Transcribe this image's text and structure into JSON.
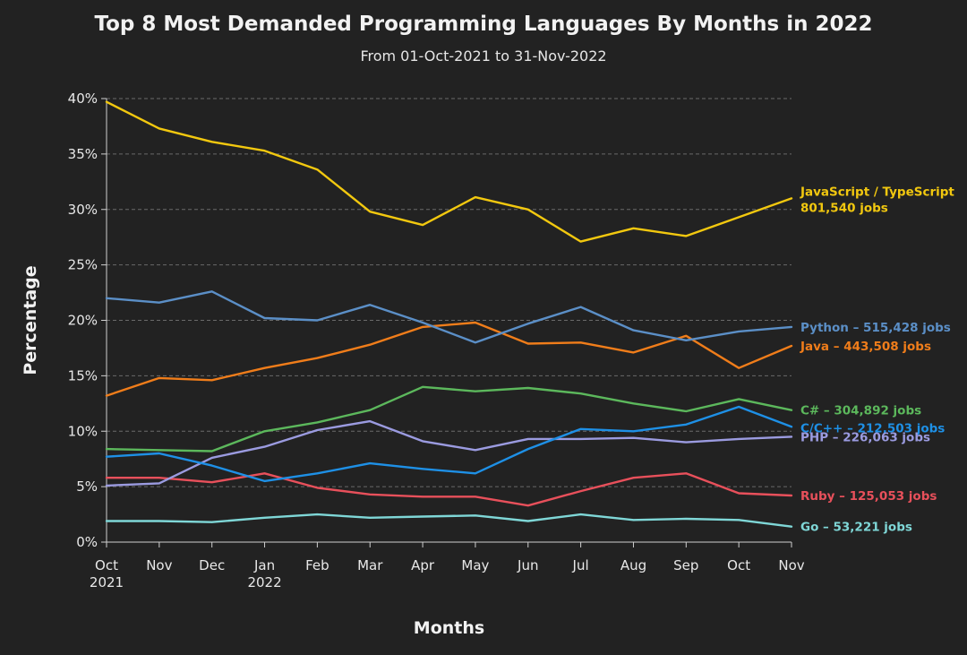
{
  "chart_data": {
    "type": "line",
    "title": "Top 8 Most Demanded Programming Languages By Months in 2022",
    "subtitle": "From 01-Oct-2021 to 31-Nov-2022",
    "xlabel": "Months",
    "ylabel": "Percentage",
    "ylim": [
      0,
      40
    ],
    "y_ticks": [
      "0%",
      "5%",
      "10%",
      "15%",
      "20%",
      "25%",
      "30%",
      "35%",
      "40%"
    ],
    "grid": true,
    "categories": [
      "Oct",
      "Nov",
      "Dec",
      "Jan",
      "Feb",
      "Mar",
      "Apr",
      "May",
      "Jun",
      "Jul",
      "Aug",
      "Sep",
      "Oct",
      "Nov"
    ],
    "category_sublabels": [
      "2021",
      "",
      "",
      "2022",
      "",
      "",
      "",
      "",
      "",
      "",
      "",
      "",
      "",
      ""
    ],
    "series": [
      {
        "name": "JavaScript / TypeScript",
        "label": [
          "JavaScript / TypeScript",
          "801,540 jobs"
        ],
        "color": "#f2c80f",
        "values": [
          39.7,
          37.3,
          36.1,
          35.3,
          33.6,
          29.8,
          28.6,
          31.1,
          30.0,
          27.1,
          28.3,
          27.6,
          29.3,
          31.0
        ]
      },
      {
        "name": "Python",
        "label": [
          "Python – 515,428 jobs"
        ],
        "color": "#5b8fc7",
        "values": [
          22.0,
          21.6,
          22.6,
          20.2,
          20.0,
          21.4,
          19.8,
          18.0,
          19.7,
          21.2,
          19.1,
          18.2,
          19.0,
          19.4
        ]
      },
      {
        "name": "Java",
        "label": [
          "Java – 443,508 jobs"
        ],
        "color": "#f07d1a",
        "values": [
          13.2,
          14.8,
          14.6,
          15.7,
          16.6,
          17.8,
          19.4,
          19.8,
          17.9,
          18.0,
          17.1,
          18.6,
          15.7,
          17.7
        ]
      },
      {
        "name": "C#",
        "label": [
          "C# – 304,892 jobs"
        ],
        "color": "#5cb85c",
        "values": [
          8.4,
          8.3,
          8.2,
          10.0,
          10.8,
          11.9,
          14.0,
          13.6,
          13.9,
          13.4,
          12.5,
          11.8,
          12.9,
          11.9
        ]
      },
      {
        "name": "C/C++",
        "label": [
          "C/C++ – 212,503 jobs"
        ],
        "color": "#1e90e6",
        "values": [
          7.7,
          8.0,
          6.9,
          5.5,
          6.2,
          7.1,
          6.6,
          6.2,
          8.4,
          10.2,
          10.0,
          10.6,
          12.2,
          10.4
        ]
      },
      {
        "name": "PHP",
        "label": [
          "PHP – 226,063 jobs"
        ],
        "color": "#9b9be0",
        "values": [
          5.1,
          5.3,
          7.6,
          8.6,
          10.1,
          10.9,
          9.1,
          8.3,
          9.3,
          9.3,
          9.4,
          9.0,
          9.3,
          9.5
        ]
      },
      {
        "name": "Ruby",
        "label": [
          "Ruby – 125,053 jobs"
        ],
        "color": "#e8505b",
        "values": [
          5.8,
          5.8,
          5.4,
          6.2,
          4.9,
          4.3,
          4.1,
          4.1,
          3.3,
          4.6,
          5.8,
          6.2,
          4.4,
          4.2
        ]
      },
      {
        "name": "Go",
        "label": [
          "Go – 53,221 jobs"
        ],
        "color": "#7fd7d7",
        "values": [
          1.9,
          1.9,
          1.8,
          2.2,
          2.5,
          2.2,
          2.3,
          2.4,
          1.9,
          2.5,
          2.0,
          2.1,
          2.0,
          1.4
        ]
      }
    ]
  }
}
